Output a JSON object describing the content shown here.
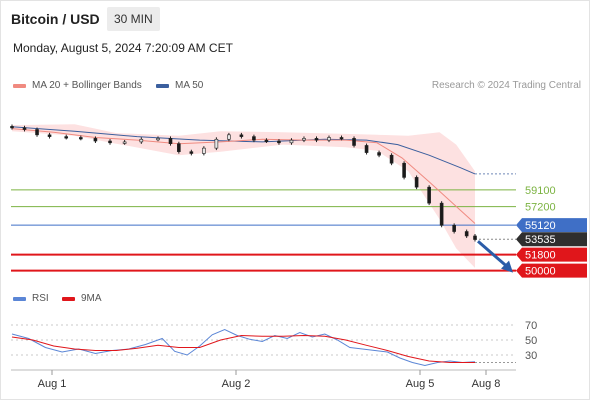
{
  "header": {
    "title": "Bitcoin / USD",
    "interval": "30 MIN",
    "datetime": "Monday, August 5, 2024 7:20:09 AM CET"
  },
  "legend": {
    "ma20": "MA 20 + Bollinger Bands",
    "ma50": "MA 50",
    "rsi": "RSI",
    "rsi_ma": "9MA"
  },
  "credit": "Research © 2024 Trading Central",
  "colors": {
    "ma20": "#f08a80",
    "bollinger_fill": "#fde1e1",
    "ma50": "#3b5f9e",
    "resistance": "#7cb342",
    "pivot": "#3f6fc6",
    "support": "#e0161b",
    "current": "#2f2f2f",
    "up_candle": "#e6e6e6",
    "down_candle": "#1a1a1a",
    "rsi": "#5b86d6",
    "rsi_ma": "#e0161b"
  },
  "chart_data": [
    {
      "type": "candlestick",
      "title": "Bitcoin / USD",
      "interval": "30 MIN",
      "x_labels": [
        "Aug 1",
        "Aug 2",
        "Aug 5",
        "Aug 8"
      ],
      "ylim": [
        49500,
        69000
      ],
      "current_price": 53535,
      "levels": [
        {
          "value": 59100,
          "label": "59100",
          "type": "resistance",
          "badge": false
        },
        {
          "value": 57200,
          "label": "57200",
          "type": "resistance",
          "badge": false
        },
        {
          "value": 55120,
          "label": "55120",
          "type": "pivot",
          "badge": true
        },
        {
          "value": 53535,
          "label": "53535",
          "type": "current",
          "badge": true
        },
        {
          "value": 51800,
          "label": "51800",
          "type": "support",
          "badge": true
        },
        {
          "value": 50000,
          "label": "50000",
          "type": "support",
          "badge": true
        }
      ],
      "forecast_arrow": {
        "from": 53300,
        "to": 50100,
        "direction": "down"
      },
      "close_series": [
        {
          "t": 0.0,
          "v": 66100
        },
        {
          "t": 0.6,
          "v": 65900
        },
        {
          "t": 1.2,
          "v": 65300
        },
        {
          "t": 1.8,
          "v": 65100
        },
        {
          "t": 2.6,
          "v": 65000
        },
        {
          "t": 3.3,
          "v": 64900
        },
        {
          "t": 4.0,
          "v": 64600
        },
        {
          "t": 4.7,
          "v": 64400
        },
        {
          "t": 5.4,
          "v": 64500
        },
        {
          "t": 6.2,
          "v": 64800
        },
        {
          "t": 7.0,
          "v": 64900
        },
        {
          "t": 7.6,
          "v": 64300
        },
        {
          "t": 8.0,
          "v": 63400
        },
        {
          "t": 8.6,
          "v": 63200
        },
        {
          "t": 9.2,
          "v": 63800
        },
        {
          "t": 9.8,
          "v": 64800
        },
        {
          "t": 10.4,
          "v": 65300
        },
        {
          "t": 11.0,
          "v": 65100
        },
        {
          "t": 11.6,
          "v": 64700
        },
        {
          "t": 12.2,
          "v": 64600
        },
        {
          "t": 12.8,
          "v": 64400
        },
        {
          "t": 13.4,
          "v": 64700
        },
        {
          "t": 14.0,
          "v": 64900
        },
        {
          "t": 14.6,
          "v": 64700
        },
        {
          "t": 15.2,
          "v": 65000
        },
        {
          "t": 15.8,
          "v": 64900
        },
        {
          "t": 16.4,
          "v": 64100
        },
        {
          "t": 17.0,
          "v": 63300
        },
        {
          "t": 17.6,
          "v": 63000
        },
        {
          "t": 18.2,
          "v": 62100
        },
        {
          "t": 18.8,
          "v": 60500
        },
        {
          "t": 19.4,
          "v": 59400
        },
        {
          "t": 20.0,
          "v": 57600
        },
        {
          "t": 20.6,
          "v": 55100
        },
        {
          "t": 21.2,
          "v": 54400
        },
        {
          "t": 21.8,
          "v": 53900
        },
        {
          "t": 22.2,
          "v": 53500
        }
      ],
      "ma20_series": [
        {
          "t": 0.0,
          "v": 66000
        },
        {
          "t": 2.0,
          "v": 65600
        },
        {
          "t": 4.0,
          "v": 65000
        },
        {
          "t": 6.0,
          "v": 64700
        },
        {
          "t": 8.0,
          "v": 64300
        },
        {
          "t": 10.0,
          "v": 64500
        },
        {
          "t": 12.0,
          "v": 64800
        },
        {
          "t": 14.0,
          "v": 64700
        },
        {
          "t": 16.0,
          "v": 64700
        },
        {
          "t": 17.5,
          "v": 64400
        },
        {
          "t": 18.7,
          "v": 62700
        },
        {
          "t": 20.0,
          "v": 60000
        },
        {
          "t": 21.5,
          "v": 56800
        },
        {
          "t": 22.2,
          "v": 55300
        }
      ],
      "ma50_series": [
        {
          "t": 0.0,
          "v": 66200
        },
        {
          "t": 3.0,
          "v": 65700
        },
        {
          "t": 6.0,
          "v": 65100
        },
        {
          "t": 9.0,
          "v": 64700
        },
        {
          "t": 12.0,
          "v": 64500
        },
        {
          "t": 15.0,
          "v": 64800
        },
        {
          "t": 17.0,
          "v": 64700
        },
        {
          "t": 18.5,
          "v": 64200
        },
        {
          "t": 20.0,
          "v": 63000
        },
        {
          "t": 21.5,
          "v": 61600
        },
        {
          "t": 22.2,
          "v": 60900
        }
      ],
      "bollinger_upper": [
        {
          "t": 0.0,
          "v": 66400
        },
        {
          "t": 3.0,
          "v": 66500
        },
        {
          "t": 5.0,
          "v": 65500
        },
        {
          "t": 8.0,
          "v": 65200
        },
        {
          "t": 10.0,
          "v": 65700
        },
        {
          "t": 13.0,
          "v": 65600
        },
        {
          "t": 16.0,
          "v": 65400
        },
        {
          "t": 17.5,
          "v": 65300
        },
        {
          "t": 19.0,
          "v": 65200
        },
        {
          "t": 20.5,
          "v": 65600
        },
        {
          "t": 21.3,
          "v": 64200
        },
        {
          "t": 22.2,
          "v": 61200
        }
      ],
      "bollinger_lower": [
        {
          "t": 22.2,
          "v": 50300
        },
        {
          "t": 21.3,
          "v": 52500
        },
        {
          "t": 20.5,
          "v": 55800
        },
        {
          "t": 19.0,
          "v": 61200
        },
        {
          "t": 17.5,
          "v": 63500
        },
        {
          "t": 16.0,
          "v": 63900
        },
        {
          "t": 13.0,
          "v": 64200
        },
        {
          "t": 10.0,
          "v": 63400
        },
        {
          "t": 8.0,
          "v": 63000
        },
        {
          "t": 5.0,
          "v": 64300
        },
        {
          "t": 3.0,
          "v": 65200
        },
        {
          "t": 0.0,
          "v": 65700
        }
      ]
    },
    {
      "type": "line",
      "title": "RSI",
      "ylim": [
        10,
        90
      ],
      "y_ticks": [
        70,
        50,
        30
      ],
      "x_labels": [
        "Aug 1",
        "Aug 2",
        "Aug 5",
        "Aug 8"
      ],
      "series": [
        {
          "name": "RSI",
          "points": [
            {
              "t": 0.0,
              "v": 58
            },
            {
              "t": 0.8,
              "v": 52
            },
            {
              "t": 1.6,
              "v": 40
            },
            {
              "t": 2.4,
              "v": 34
            },
            {
              "t": 3.2,
              "v": 38
            },
            {
              "t": 4.0,
              "v": 32
            },
            {
              "t": 4.8,
              "v": 36
            },
            {
              "t": 5.6,
              "v": 38
            },
            {
              "t": 6.4,
              "v": 44
            },
            {
              "t": 7.2,
              "v": 52
            },
            {
              "t": 7.8,
              "v": 35
            },
            {
              "t": 8.4,
              "v": 30
            },
            {
              "t": 9.0,
              "v": 42
            },
            {
              "t": 9.6,
              "v": 57
            },
            {
              "t": 10.2,
              "v": 64
            },
            {
              "t": 10.8,
              "v": 56
            },
            {
              "t": 11.4,
              "v": 51
            },
            {
              "t": 12.0,
              "v": 48
            },
            {
              "t": 12.6,
              "v": 56
            },
            {
              "t": 13.2,
              "v": 52
            },
            {
              "t": 13.8,
              "v": 60
            },
            {
              "t": 14.4,
              "v": 54
            },
            {
              "t": 15.0,
              "v": 58
            },
            {
              "t": 15.6,
              "v": 50
            },
            {
              "t": 16.2,
              "v": 40
            },
            {
              "t": 16.8,
              "v": 38
            },
            {
              "t": 17.4,
              "v": 36
            },
            {
              "t": 18.0,
              "v": 34
            },
            {
              "t": 18.6,
              "v": 26
            },
            {
              "t": 19.2,
              "v": 20
            },
            {
              "t": 19.8,
              "v": 16
            },
            {
              "t": 20.4,
              "v": 20
            },
            {
              "t": 21.0,
              "v": 22
            },
            {
              "t": 21.6,
              "v": 20
            },
            {
              "t": 22.2,
              "v": 21
            }
          ]
        },
        {
          "name": "9MA",
          "points": [
            {
              "t": 0.0,
              "v": 54
            },
            {
              "t": 1.0,
              "v": 50
            },
            {
              "t": 2.0,
              "v": 42
            },
            {
              "t": 3.0,
              "v": 38
            },
            {
              "t": 4.0,
              "v": 36
            },
            {
              "t": 5.0,
              "v": 36
            },
            {
              "t": 6.0,
              "v": 39
            },
            {
              "t": 7.0,
              "v": 43
            },
            {
              "t": 8.0,
              "v": 40
            },
            {
              "t": 9.0,
              "v": 40
            },
            {
              "t": 10.0,
              "v": 50
            },
            {
              "t": 11.0,
              "v": 56
            },
            {
              "t": 12.0,
              "v": 55
            },
            {
              "t": 13.0,
              "v": 55
            },
            {
              "t": 14.0,
              "v": 56
            },
            {
              "t": 15.0,
              "v": 55
            },
            {
              "t": 16.0,
              "v": 50
            },
            {
              "t": 17.0,
              "v": 43
            },
            {
              "t": 18.0,
              "v": 36
            },
            {
              "t": 19.0,
              "v": 28
            },
            {
              "t": 20.0,
              "v": 22
            },
            {
              "t": 21.0,
              "v": 20
            },
            {
              "t": 22.2,
              "v": 20
            }
          ]
        }
      ]
    }
  ]
}
